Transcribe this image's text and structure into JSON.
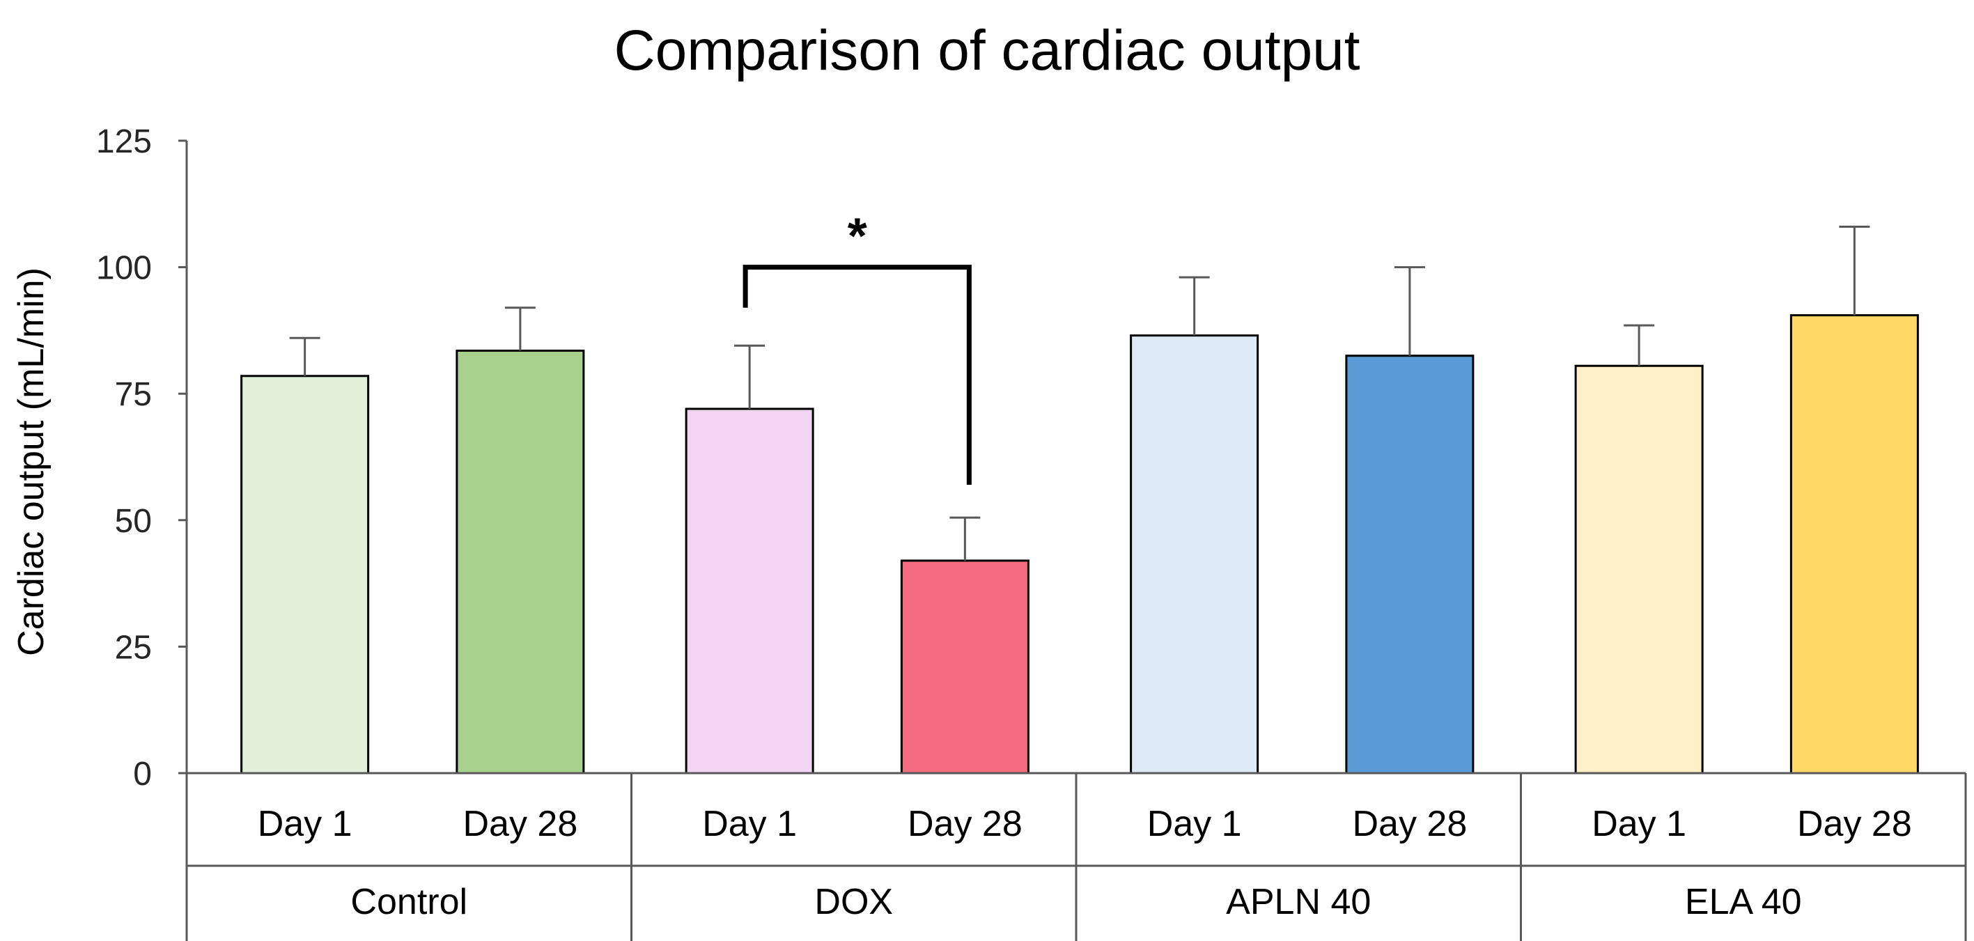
{
  "chart_data": {
    "type": "bar",
    "title": "Comparison of cardiac output",
    "ylabel": "Cardiac output (mL/min)",
    "xlabel": "",
    "ylim": [
      0,
      125
    ],
    "yticks": [
      0,
      25,
      50,
      75,
      100,
      125
    ],
    "grid": false,
    "legend": "none",
    "groups": [
      {
        "name": "Control",
        "bars": [
          {
            "label": "Day 1",
            "value": 78.5,
            "error": 7.5,
            "color": "#e2efd9"
          },
          {
            "label": "Day 28",
            "value": 83.5,
            "error": 8.5,
            "color": "#a9d18e"
          }
        ]
      },
      {
        "name": "DOX",
        "bars": [
          {
            "label": "Day 1",
            "value": 72,
            "error": 12.5,
            "color": "#f2d5f2"
          },
          {
            "label": "Day 28",
            "value": 42,
            "error": 8.5,
            "color": "#f56b80"
          }
        ]
      },
      {
        "name": "APLN 40",
        "bars": [
          {
            "label": "Day 1",
            "value": 86.5,
            "error": 11.5,
            "color": "#dde9f6"
          },
          {
            "label": "Day 28",
            "value": 82.5,
            "error": 17.5,
            "color": "#5b9bd5"
          }
        ]
      },
      {
        "name": "ELA 40",
        "bars": [
          {
            "label": "Day 1",
            "value": 80.5,
            "error": 8,
            "color": "#fff0c8"
          },
          {
            "label": "Day 28",
            "value": 90.5,
            "error": 17.5,
            "color": "#ffd966"
          }
        ]
      }
    ],
    "annotations": [
      {
        "type": "significance",
        "text": "*",
        "group": 1,
        "from_bar": 0,
        "to_bar": 1,
        "bracket_value": 100,
        "left_drop_value": 92,
        "right_drop_value": 57
      }
    ]
  }
}
